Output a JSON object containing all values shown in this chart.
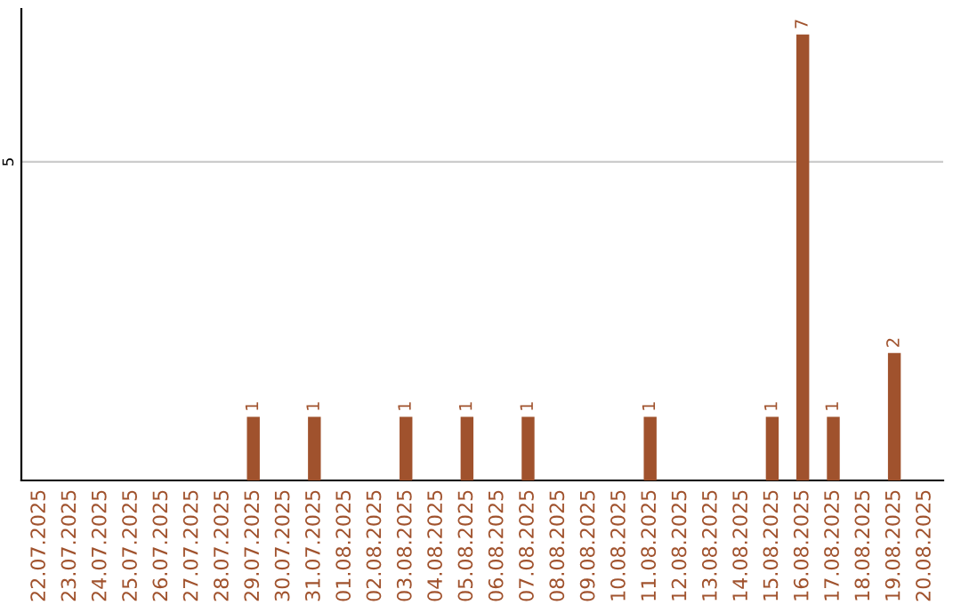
{
  "chart_data": {
    "type": "bar",
    "categories": [
      "22.07.2025",
      "23.07.2025",
      "24.07.2025",
      "25.07.2025",
      "26.07.2025",
      "27.07.2025",
      "28.07.2025",
      "29.07.2025",
      "30.07.2025",
      "31.07.2025",
      "01.08.2025",
      "02.08.2025",
      "03.08.2025",
      "04.08.2025",
      "05.08.2025",
      "06.08.2025",
      "07.08.2025",
      "08.08.2025",
      "09.08.2025",
      "10.08.2025",
      "11.08.2025",
      "12.08.2025",
      "13.08.2025",
      "14.08.2025",
      "15.08.2025",
      "16.08.2025",
      "17.08.2025",
      "18.08.2025",
      "19.08.2025",
      "20.08.2025"
    ],
    "values": [
      0,
      0,
      0,
      0,
      0,
      0,
      0,
      1,
      0,
      1,
      0,
      0,
      1,
      0,
      1,
      0,
      1,
      0,
      0,
      0,
      1,
      0,
      0,
      0,
      1,
      7,
      1,
      0,
      2,
      0
    ],
    "value_labels": [
      null,
      null,
      null,
      null,
      null,
      null,
      null,
      "1",
      null,
      "1",
      null,
      null,
      "1",
      null,
      "1",
      null,
      "1",
      null,
      null,
      null,
      "1",
      null,
      null,
      null,
      "1",
      "7",
      "1",
      null,
      "2",
      null
    ],
    "color": "#a0522d",
    "ylim": [
      0,
      7.4
    ],
    "yticks": [
      5
    ],
    "grid": "y"
  }
}
